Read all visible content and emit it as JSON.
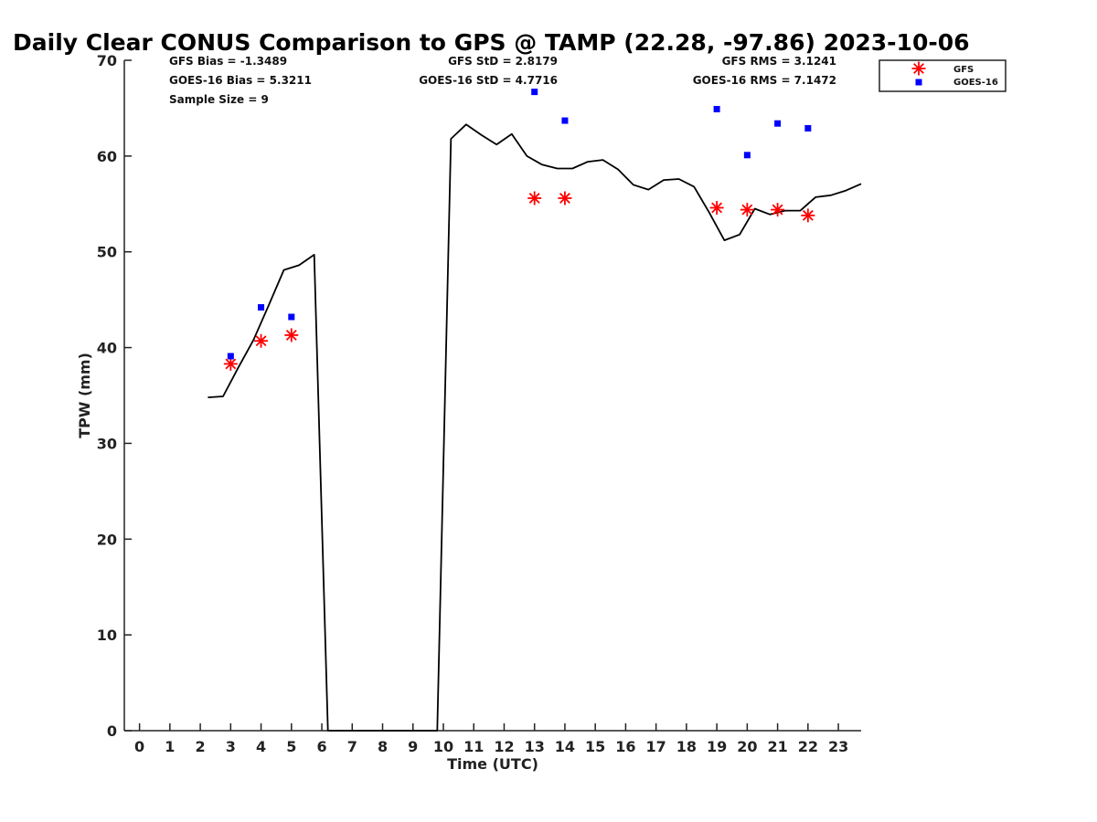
{
  "chart_data": {
    "type": "line",
    "title": "Daily Clear CONUS Comparison to GPS @ TAMP (22.28, -97.86) 2023-10-06",
    "xlabel": "Time (UTC)",
    "ylabel": "TPW (mm)",
    "xlim": [
      -0.5,
      23.75
    ],
    "ylim": [
      0,
      70
    ],
    "x_ticks": [
      0,
      1,
      2,
      3,
      4,
      5,
      6,
      7,
      8,
      9,
      10,
      11,
      12,
      13,
      14,
      15,
      16,
      17,
      18,
      19,
      20,
      21,
      22,
      23
    ],
    "y_ticks": [
      0,
      10,
      20,
      30,
      40,
      50,
      60,
      70
    ],
    "grid": false,
    "legend_position": "top-right",
    "stats": {
      "gfs_bias": "GFS Bias = -1.3489",
      "goes_bias": "GOES-16 Bias = 5.3211",
      "sample_size": "Sample Size = 9",
      "gfs_std": "GFS StD = 2.8179",
      "goes_std": "GOES-16 StD = 4.7716",
      "gfs_rms": "GFS RMS = 3.1241",
      "goes_rms": "GOES-16 RMS = 7.1472"
    },
    "series": [
      {
        "kind": "line",
        "color": "#000000",
        "x": [
          2.25,
          2.75,
          3.25,
          3.75,
          4.25,
          4.75,
          5.25,
          5.75,
          6.2,
          9.8,
          10.25,
          10.75,
          11.25,
          11.75,
          12.25,
          12.75,
          13.25,
          13.75,
          14.25,
          14.75,
          15.25,
          15.75,
          16.25,
          16.75,
          17.25,
          17.75,
          18.25,
          18.75,
          19.25,
          19.75,
          20.25,
          20.75,
          21.25,
          21.75,
          22.25,
          22.75,
          23.25,
          23.75
        ],
        "y": [
          34.8,
          34.9,
          37.9,
          40.8,
          44.4,
          48.1,
          48.6,
          49.7,
          0.0,
          0.0,
          61.8,
          63.3,
          62.2,
          61.2,
          62.3,
          60.0,
          59.1,
          58.7,
          58.7,
          59.4,
          59.6,
          58.6,
          57.0,
          56.5,
          57.5,
          57.6,
          56.8,
          54.1,
          51.2,
          51.8,
          54.5,
          53.9,
          54.3,
          54.3,
          55.7,
          55.9,
          56.4,
          57.1
        ]
      },
      {
        "name": "GFS",
        "kind": "scatter",
        "marker": "asterisk",
        "color": "#ff0000",
        "x": [
          3,
          4,
          5,
          13,
          14,
          19,
          20,
          21,
          22
        ],
        "y": [
          38.3,
          40.7,
          41.3,
          55.6,
          55.6,
          54.6,
          54.4,
          54.4,
          53.8
        ]
      },
      {
        "name": "GOES-16",
        "kind": "scatter",
        "marker": "square",
        "color": "#0000ff",
        "x": [
          3,
          4,
          5,
          13,
          14,
          19,
          20,
          21,
          22
        ],
        "y": [
          39.1,
          44.2,
          43.2,
          66.7,
          63.7,
          64.9,
          60.1,
          63.4,
          62.9
        ]
      }
    ]
  }
}
